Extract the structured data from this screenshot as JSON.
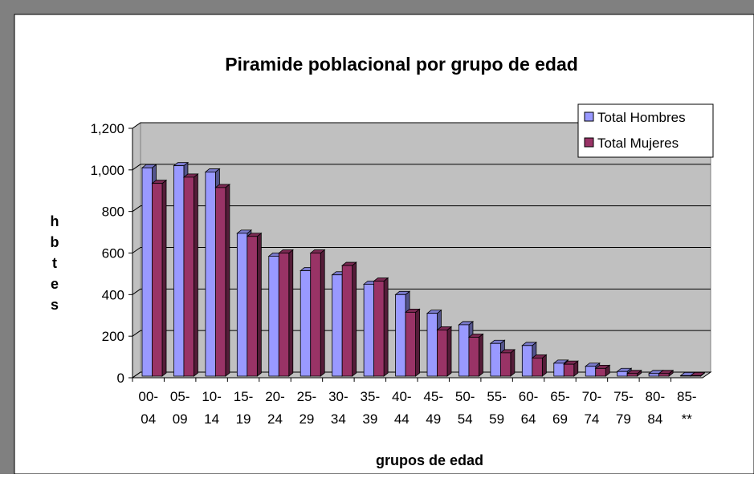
{
  "chart_data": {
    "type": "bar3d",
    "title": "Piramide poblacional por grupo de edad",
    "x_label": "grupos de edad",
    "y_label": "hbtes",
    "categories": [
      "00- 04",
      "05- 09",
      "10- 14",
      "15- 19",
      "20- 24",
      "25- 29",
      "30- 34",
      "35- 39",
      "40- 44",
      "45- 49",
      "50- 54",
      "55- 59",
      "60- 64",
      "65- 69",
      "70- 74",
      "75- 79",
      "80- 84",
      "85- **"
    ],
    "series": [
      {
        "name": "Total Hombres",
        "color": "#9999ff",
        "values": [
          1010,
          1020,
          990,
          695,
          585,
          515,
          495,
          450,
          400,
          310,
          255,
          165,
          155,
          70,
          55,
          30,
          20,
          10
        ]
      },
      {
        "name": "Total Mujeres",
        "color": "#993366",
        "values": [
          935,
          965,
          915,
          680,
          600,
          600,
          540,
          465,
          315,
          230,
          195,
          120,
          95,
          65,
          45,
          20,
          20,
          10
        ]
      }
    ],
    "ylim": [
      0,
      1200
    ],
    "yticks": [
      0,
      200,
      400,
      600,
      800,
      {
        "value": 1000,
        "label": "1,000"
      },
      {
        "value": 1200,
        "label": "1,200"
      }
    ],
    "grid": true,
    "legend": "top-right"
  }
}
